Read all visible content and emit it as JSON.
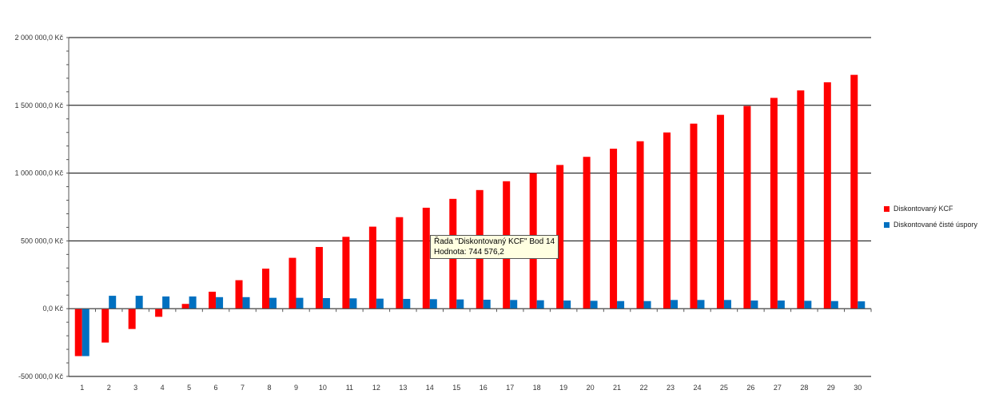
{
  "chart_data": {
    "type": "bar",
    "categories": [
      "1",
      "2",
      "3",
      "4",
      "5",
      "6",
      "7",
      "8",
      "9",
      "10",
      "11",
      "12",
      "13",
      "14",
      "15",
      "16",
      "17",
      "18",
      "19",
      "20",
      "21",
      "22",
      "23",
      "24",
      "25",
      "26",
      "27",
      "28",
      "29",
      "30"
    ],
    "series": [
      {
        "name": "Diskontovaný KCF",
        "color": "#ff0000",
        "values": [
          -350000,
          -250000,
          -150000,
          -60000,
          35000,
          125000,
          210000,
          295000,
          375000,
          455000,
          530000,
          605000,
          675000,
          744576.2,
          810000,
          875000,
          940000,
          1000000,
          1060000,
          1120000,
          1180000,
          1235000,
          1300000,
          1365000,
          1430000,
          1495000,
          1555000,
          1610000,
          1670000,
          1725000
        ]
      },
      {
        "name": "Diskontované čisté úspory",
        "color": "#0070c0",
        "values": [
          -350000,
          95000,
          95000,
          90000,
          90000,
          85000,
          85000,
          80000,
          80000,
          78000,
          76000,
          74000,
          72000,
          70000,
          68000,
          66000,
          64000,
          62000,
          60000,
          58000,
          56000,
          56000,
          64000,
          64000,
          64000,
          60000,
          60000,
          58000,
          56000,
          54000
        ]
      }
    ],
    "ylim": [
      -500000,
      2000000
    ],
    "yticks": [
      "-500 000,0 Kč",
      "0,0 Kč",
      "500 000,0 Kč",
      "1 000 000,0 Kč",
      "1 500 000,0 Kč",
      "2 000 000,0 Kč"
    ],
    "ytick_values": [
      -500000,
      0,
      500000,
      1000000,
      1500000,
      2000000
    ],
    "grid": true,
    "legend_position": "right"
  },
  "tooltip": {
    "line1": "Řada \"Diskontovaný KCF\" Bod 14",
    "line2": "Hodnota: 744 576,2"
  }
}
